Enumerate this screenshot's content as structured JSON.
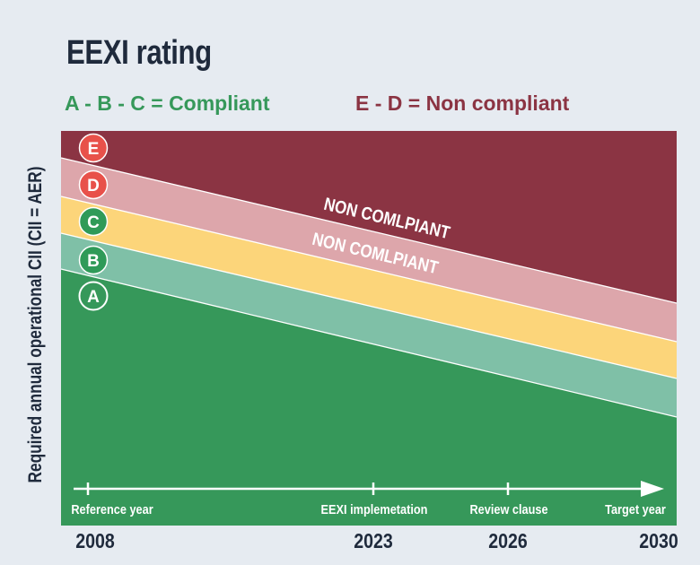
{
  "title": "EEXI rating",
  "legend": {
    "compliant": "A - B - C  =  Compliant",
    "noncompliant": "E - D =  Non compliant"
  },
  "ylabel": "Required annual operational CII (CII = AER)",
  "bands": [
    {
      "letter": "E",
      "color": "#8b3443"
    },
    {
      "letter": "D",
      "color": "#dda6ab"
    },
    {
      "letter": "C",
      "color": "#fcd57a"
    },
    {
      "letter": "B",
      "color": "#7fc0a7"
    },
    {
      "letter": "A",
      "color": "#36985a"
    }
  ],
  "band_annotations": [
    "NON COMLPIANT",
    "NON COMLPIANT"
  ],
  "timeline": {
    "milestones": [
      "Reference year",
      "EEXI implemetation",
      "Review clause",
      "Target year"
    ],
    "years": [
      "2008",
      "2023",
      "2026",
      "2030"
    ]
  }
}
